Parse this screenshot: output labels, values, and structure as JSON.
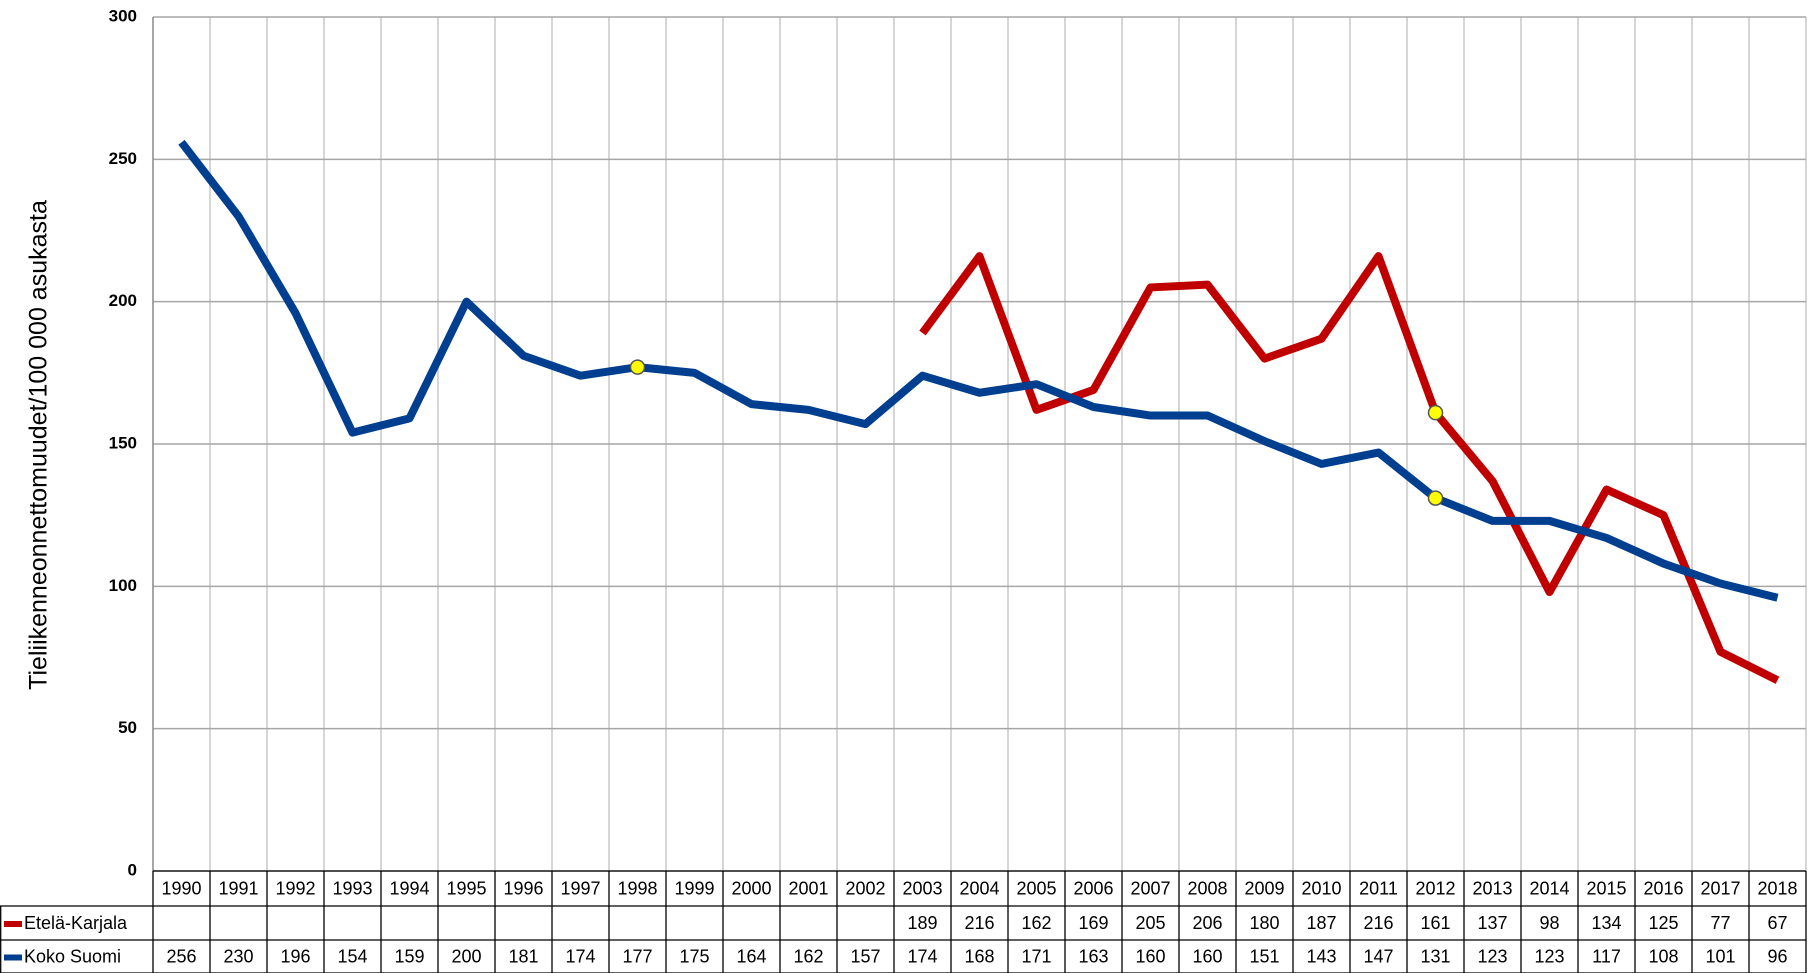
{
  "chart_data": {
    "type": "line",
    "y_label": "Tieliikenneonnettomuudet/100 000 asukasta",
    "categories": [
      "1990",
      "1991",
      "1992",
      "1993",
      "1994",
      "1995",
      "1996",
      "1997",
      "1998",
      "1999",
      "2000",
      "2001",
      "2002",
      "2003",
      "2004",
      "2005",
      "2006",
      "2007",
      "2008",
      "2009",
      "2010",
      "2011",
      "2012",
      "2013",
      "2014",
      "2015",
      "2016",
      "2017",
      "2018"
    ],
    "series": [
      {
        "name": "Etelä-Karjala",
        "color": "#c00000",
        "markers": [
          "2012"
        ],
        "values": [
          null,
          null,
          null,
          null,
          null,
          null,
          null,
          null,
          null,
          null,
          null,
          null,
          null,
          189,
          216,
          162,
          169,
          205,
          206,
          180,
          187,
          216,
          161,
          137,
          98,
          134,
          125,
          77,
          67
        ]
      },
      {
        "name": "Koko Suomi",
        "color": "#003f8f",
        "markers": [
          "1998",
          "2012"
        ],
        "values": [
          256,
          230,
          196,
          154,
          159,
          200,
          181,
          174,
          177,
          175,
          164,
          162,
          157,
          174,
          168,
          171,
          163,
          160,
          160,
          151,
          143,
          147,
          131,
          123,
          123,
          117,
          108,
          101,
          96
        ]
      }
    ],
    "marker_color": "#ffff00",
    "ylim": [
      0,
      300
    ],
    "yticks": [
      0,
      50,
      100,
      150,
      200,
      250,
      300
    ],
    "grid": true
  }
}
